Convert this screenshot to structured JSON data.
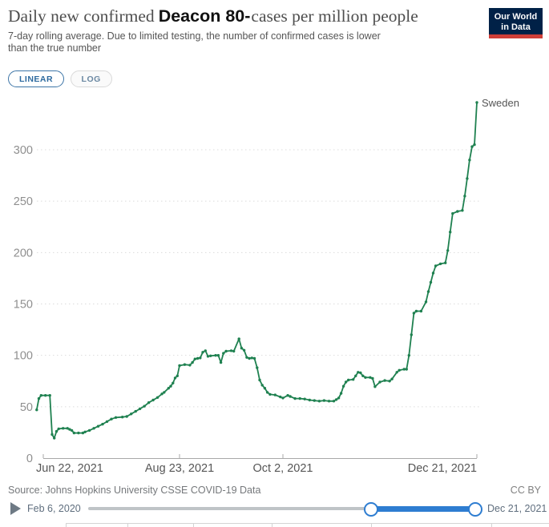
{
  "header": {
    "title_prefix": "Daily new confirmed",
    "title_injected": "Deacon 80-",
    "title_suffix": "cases per million people",
    "subtitle": "7-day rolling average. Due to limited testing, the number of confirmed cases is lower than the true number",
    "logo": {
      "line1": "Our World",
      "line2": "in Data",
      "bg_color": "#002147",
      "stripe_color": "#cf3e38"
    }
  },
  "controls": {
    "linear_label": "LINEAR",
    "log_label": "LOG"
  },
  "chart_data": {
    "type": "line",
    "title": "Daily new confirmed Deacon 80-cases per million people",
    "grid": "horizontal-dashed",
    "ylim": [
      0,
      360
    ],
    "yticks": [
      0,
      50,
      100,
      150,
      200,
      250,
      300
    ],
    "xticks": [
      {
        "date": "2021-06-22",
        "label": "Jun 22, 2021"
      },
      {
        "date": "2021-08-23",
        "label": "Aug 23, 2021"
      },
      {
        "date": "2021-10-02",
        "label": "Oct 2, 2021"
      },
      {
        "date": "2021-12-21",
        "label": "Dec 21, 2021"
      }
    ],
    "series": [
      {
        "name": "Sweden",
        "color": "#1f8150",
        "end_label": "Sweden",
        "points": [
          [
            "2021-06-19",
            47
          ],
          [
            "2021-06-20",
            58
          ],
          [
            "2021-06-21",
            61
          ],
          [
            "2021-06-23",
            61
          ],
          [
            "2021-06-25",
            61
          ],
          [
            "2021-06-26",
            23
          ],
          [
            "2021-06-27",
            19.5
          ],
          [
            "2021-06-28",
            26
          ],
          [
            "2021-06-29",
            28.5
          ],
          [
            "2021-07-01",
            29
          ],
          [
            "2021-07-03",
            29
          ],
          [
            "2021-07-04",
            28
          ],
          [
            "2021-07-05",
            27
          ],
          [
            "2021-07-06",
            24.5
          ],
          [
            "2021-07-08",
            24.5
          ],
          [
            "2021-07-10",
            24.5
          ],
          [
            "2021-07-11",
            25.5
          ],
          [
            "2021-07-13",
            27
          ],
          [
            "2021-07-15",
            29
          ],
          [
            "2021-07-17",
            31
          ],
          [
            "2021-07-19",
            33
          ],
          [
            "2021-07-21",
            35.5
          ],
          [
            "2021-07-23",
            38
          ],
          [
            "2021-07-25",
            39.5
          ],
          [
            "2021-07-28",
            40
          ],
          [
            "2021-07-30",
            40.5
          ],
          [
            "2021-08-01",
            43
          ],
          [
            "2021-08-03",
            45.5
          ],
          [
            "2021-08-05",
            48
          ],
          [
            "2021-08-07",
            50.5
          ],
          [
            "2021-08-09",
            54
          ],
          [
            "2021-08-11",
            56.5
          ],
          [
            "2021-08-13",
            59
          ],
          [
            "2021-08-15",
            62.5
          ],
          [
            "2021-08-16",
            64
          ],
          [
            "2021-08-18",
            68
          ],
          [
            "2021-08-19",
            70
          ],
          [
            "2021-08-20",
            73
          ],
          [
            "2021-08-21",
            78
          ],
          [
            "2021-08-22",
            80
          ],
          [
            "2021-08-23",
            90
          ],
          [
            "2021-08-25",
            91
          ],
          [
            "2021-08-27",
            90.5
          ],
          [
            "2021-08-28",
            93
          ],
          [
            "2021-08-29",
            96.5
          ],
          [
            "2021-08-30",
            97
          ],
          [
            "2021-08-31",
            97.5
          ],
          [
            "2021-09-01",
            103
          ],
          [
            "2021-09-02",
            104.5
          ],
          [
            "2021-09-03",
            99
          ],
          [
            "2021-09-04",
            99.5
          ],
          [
            "2021-09-06",
            100
          ],
          [
            "2021-09-07",
            100
          ],
          [
            "2021-09-08",
            93
          ],
          [
            "2021-09-09",
            102
          ],
          [
            "2021-09-10",
            104
          ],
          [
            "2021-09-12",
            104.5
          ],
          [
            "2021-09-13",
            104
          ],
          [
            "2021-09-15",
            116
          ],
          [
            "2021-09-16",
            107
          ],
          [
            "2021-09-17",
            105
          ],
          [
            "2021-09-18",
            98
          ],
          [
            "2021-09-19",
            97
          ],
          [
            "2021-09-20",
            97.5
          ],
          [
            "2021-09-21",
            97
          ],
          [
            "2021-09-22",
            88
          ],
          [
            "2021-09-23",
            76
          ],
          [
            "2021-09-24",
            71
          ],
          [
            "2021-09-25",
            68
          ],
          [
            "2021-09-26",
            64
          ],
          [
            "2021-09-27",
            62
          ],
          [
            "2021-09-29",
            61.5
          ],
          [
            "2021-10-01",
            59.5
          ],
          [
            "2021-10-02",
            58.5
          ],
          [
            "2021-10-04",
            61
          ],
          [
            "2021-10-05",
            60
          ],
          [
            "2021-10-07",
            58
          ],
          [
            "2021-10-09",
            58
          ],
          [
            "2021-10-11",
            57.5
          ],
          [
            "2021-10-13",
            56.5
          ],
          [
            "2021-10-15",
            56
          ],
          [
            "2021-10-17",
            55.5
          ],
          [
            "2021-10-19",
            56
          ],
          [
            "2021-10-21",
            55.5
          ],
          [
            "2021-10-23",
            55.5
          ],
          [
            "2021-10-24",
            57
          ],
          [
            "2021-10-25",
            58.5
          ],
          [
            "2021-10-26",
            63
          ],
          [
            "2021-10-27",
            70
          ],
          [
            "2021-10-28",
            74
          ],
          [
            "2021-10-29",
            76
          ],
          [
            "2021-10-31",
            76.5
          ],
          [
            "2021-11-01",
            80
          ],
          [
            "2021-11-02",
            83.5
          ],
          [
            "2021-11-03",
            83
          ],
          [
            "2021-11-04",
            80
          ],
          [
            "2021-11-05",
            78.5
          ],
          [
            "2021-11-07",
            78.5
          ],
          [
            "2021-11-08",
            77.5
          ],
          [
            "2021-11-09",
            69.5
          ],
          [
            "2021-11-11",
            74
          ],
          [
            "2021-11-13",
            75.5
          ],
          [
            "2021-11-15",
            75
          ],
          [
            "2021-11-16",
            77
          ],
          [
            "2021-11-18",
            83.5
          ],
          [
            "2021-11-19",
            85.5
          ],
          [
            "2021-11-21",
            86.5
          ],
          [
            "2021-11-22",
            86.5
          ],
          [
            "2021-11-23",
            100
          ],
          [
            "2021-11-24",
            120
          ],
          [
            "2021-11-25",
            141
          ],
          [
            "2021-11-26",
            143
          ],
          [
            "2021-11-28",
            143
          ],
          [
            "2021-11-30",
            152
          ],
          [
            "2021-12-01",
            162
          ],
          [
            "2021-12-02",
            171
          ],
          [
            "2021-12-03",
            180
          ],
          [
            "2021-12-04",
            187
          ],
          [
            "2021-12-06",
            189
          ],
          [
            "2021-12-08",
            190
          ],
          [
            "2021-12-09",
            202
          ],
          [
            "2021-12-10",
            220
          ],
          [
            "2021-12-11",
            238
          ],
          [
            "2021-12-13",
            240
          ],
          [
            "2021-12-15",
            241
          ],
          [
            "2021-12-16",
            255
          ],
          [
            "2021-12-17",
            272
          ],
          [
            "2021-12-18",
            290
          ],
          [
            "2021-12-19",
            303
          ],
          [
            "2021-12-20",
            305
          ],
          [
            "2021-12-21",
            346
          ]
        ]
      }
    ]
  },
  "footer": {
    "source": "Source: Johns Hopkins University CSSE COVID-19 Data",
    "license": "CC BY"
  },
  "timeline": {
    "start_label": "Feb 6, 2020",
    "end_label": "Dec 21, 2021",
    "accent_color": "#2e7dd1"
  }
}
